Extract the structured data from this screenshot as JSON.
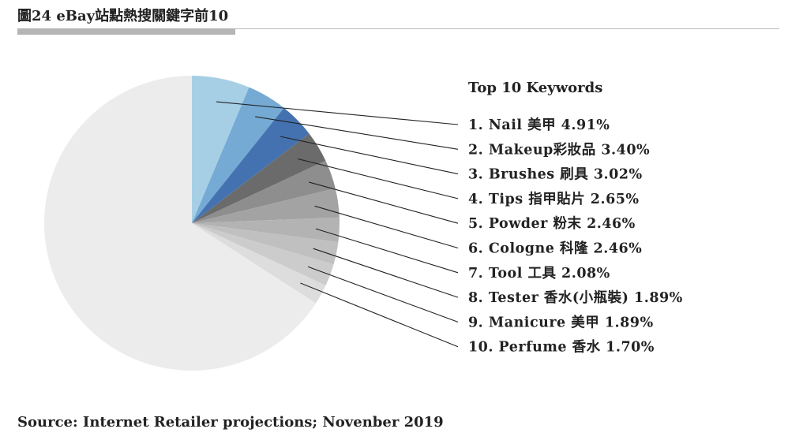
{
  "title": "圖24 eBay站點熱搜關鍵字前10",
  "source": "Source: Internet Retailer projections; Novenber 2019",
  "chart_data": {
    "type": "pie",
    "title": "Top 10 Keywords",
    "legend_placement": "right",
    "labels": [
      "1. Nail 美甲 4.91%",
      "2. Makeup彩妝品 3.40%",
      "3. Brushes 刷具 3.02%",
      "4. Tips 指甲貼片 2.65%",
      "5. Powder 粉末 2.46%",
      "6. Cologne 科隆 2.46%",
      "7. Tool 工具 2.08%",
      "8. Tester 香水(小瓶裝) 1.89%",
      "9. Manicure 美甲 1.89%",
      "10. Perfume 香水 1.70%"
    ],
    "values": [
      4.91,
      3.4,
      3.02,
      2.65,
      2.46,
      2.46,
      2.08,
      1.89,
      1.89,
      1.7
    ],
    "colors": [
      "#a6cfe6",
      "#74aad4",
      "#4472b0",
      "#6b6b6b",
      "#8e8e8e",
      "#a3a3a3",
      "#b3b3b3",
      "#c0c0c0",
      "#cccccc",
      "#dddddd"
    ],
    "remainder_color": "#ececec"
  }
}
